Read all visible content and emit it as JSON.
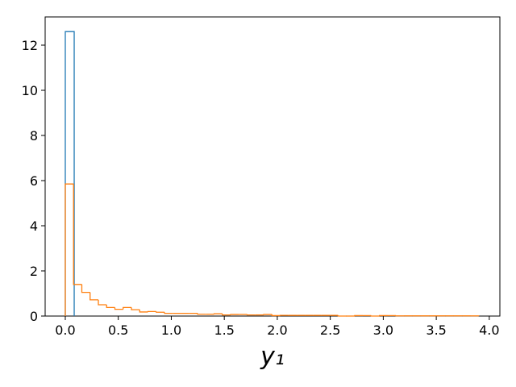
{
  "chart_data": {
    "type": "histogram",
    "xlabel": "y₁",
    "series": [
      {
        "color": "#1f77b4",
        "bins": [
          0,
          0.084
        ],
        "values": [
          12.6
        ]
      },
      {
        "color": "#ff7f0e",
        "bins": [
          0,
          0.078,
          0.156,
          0.234,
          0.312,
          0.39,
          0.468,
          0.546,
          0.624,
          0.702,
          0.78,
          0.858,
          0.936,
          1.014,
          1.092,
          1.17,
          1.248,
          1.326,
          1.404,
          1.482,
          1.56,
          1.638,
          1.716,
          1.794,
          1.872,
          1.95,
          2.028,
          2.106,
          2.184,
          2.262,
          2.34,
          2.418,
          2.496,
          2.574,
          2.652,
          2.73,
          2.808,
          2.886,
          2.964,
          3.042,
          3.12,
          3.198,
          3.276,
          3.354,
          3.432,
          3.51,
          3.588,
          3.666,
          3.744,
          3.822,
          3.9
        ],
        "values": [
          5.85,
          1.4,
          1.05,
          0.72,
          0.5,
          0.38,
          0.3,
          0.38,
          0.28,
          0.18,
          0.2,
          0.17,
          0.12,
          0.12,
          0.12,
          0.12,
          0.08,
          0.08,
          0.1,
          0.05,
          0.07,
          0.07,
          0.05,
          0.05,
          0.07,
          0.02,
          0.03,
          0.03,
          0.03,
          0.03,
          0.03,
          0.03,
          0.03,
          0,
          0,
          0.02,
          0.02,
          0,
          0.02,
          0.02,
          0.01,
          0.01,
          0.01,
          0.01,
          0.01,
          0.01,
          0.01,
          0.01,
          0.01,
          0.01
        ]
      }
    ],
    "xlim": [
      -0.19,
      4.1
    ],
    "ylim": [
      0,
      13.25
    ],
    "xticks": [
      {
        "value": 0,
        "label": "0.0"
      },
      {
        "value": 0.5,
        "label": "0.5"
      },
      {
        "value": 1,
        "label": "1.0"
      },
      {
        "value": 1.5,
        "label": "1.5"
      },
      {
        "value": 2,
        "label": "2.0"
      },
      {
        "value": 2.5,
        "label": "2.5"
      },
      {
        "value": 3,
        "label": "3.0"
      },
      {
        "value": 3.5,
        "label": "3.5"
      },
      {
        "value": 4,
        "label": "4.0"
      }
    ],
    "yticks": [
      0,
      2,
      4,
      6,
      8,
      10,
      12
    ]
  }
}
